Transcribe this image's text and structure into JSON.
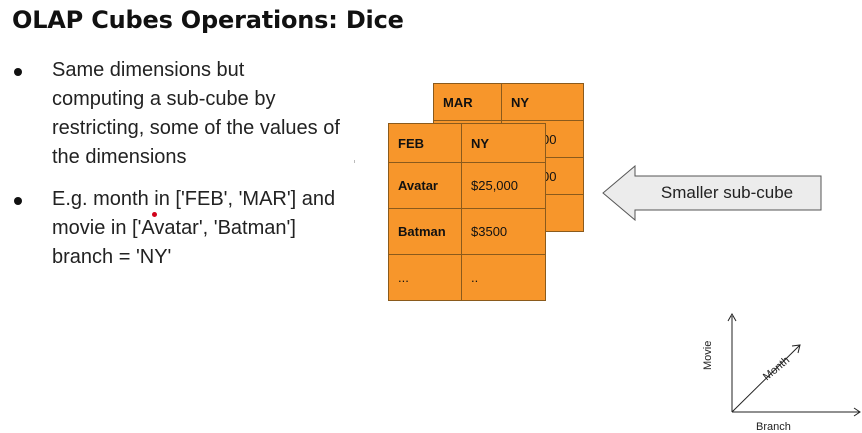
{
  "title": "OLAP Cubes Operations: Dice",
  "bullets": [
    {
      "lines": [
        "Same dimensions but",
        "computing a sub-cube by",
        "restricting, some of the values of",
        "the dimensions"
      ]
    },
    {
      "lines": [
        "E.g. month in ['FEB', 'MAR'] and",
        "movie in ['Avatar', 'Batman']",
        "branch = 'NY'"
      ]
    }
  ],
  "back_cube": {
    "rows": [
      [
        "MAR",
        "NY"
      ],
      [
        "",
        "00"
      ],
      [
        "",
        "00"
      ],
      [
        "",
        ")"
      ]
    ]
  },
  "front_cube": {
    "rows": [
      [
        "FEB",
        "NY"
      ],
      [
        "Avatar",
        "$25,000"
      ],
      [
        "Batman",
        "$3500"
      ],
      [
        "...",
        ".."
      ]
    ]
  },
  "callout": {
    "label": "Smaller sub-cube"
  },
  "axes": {
    "y": "Movie",
    "z": "Month",
    "x": "Branch"
  },
  "colors": {
    "cube": "#f7962b",
    "cube_border": "#8a5a1c",
    "arrow_fill": "#ececec"
  }
}
